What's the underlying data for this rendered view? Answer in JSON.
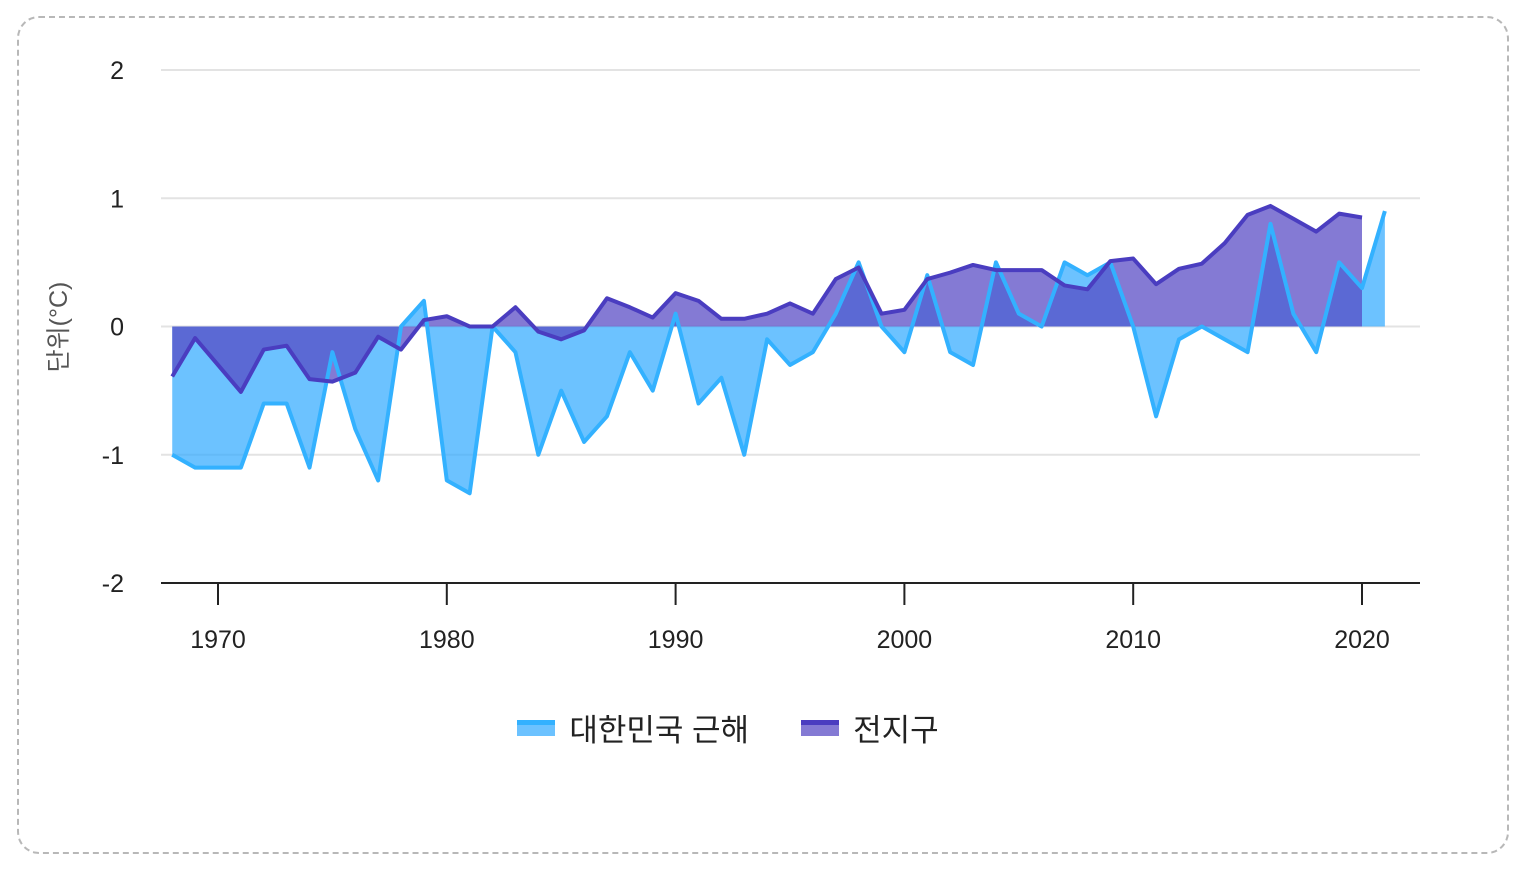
{
  "chart_data": {
    "type": "area",
    "title": "",
    "xlabel": "",
    "ylabel": "단위(°C)",
    "ylim": [
      -2,
      2
    ],
    "yticks": [
      "2",
      "1",
      "0",
      "-1",
      "-2"
    ],
    "ytick_values": [
      2,
      1,
      0,
      -1,
      -2
    ],
    "xticks": [
      "1970",
      "1980",
      "1990",
      "2000",
      "2010",
      "2020"
    ],
    "xtick_values": [
      1970,
      1980,
      1990,
      2000,
      2010,
      2020
    ],
    "xlim": [
      1966,
      2024.5
    ],
    "grid": true,
    "legend_position": "bottom",
    "series": [
      {
        "name": "대한민국 근해",
        "line_color": "#33b1ff",
        "fill_color": "rgba(51,170,255,0.72)",
        "start_year": 1968,
        "values": [
          -1.0,
          -1.1,
          -1.1,
          -1.1,
          -0.6,
          -0.6,
          -1.1,
          -0.2,
          -0.8,
          -1.2,
          0.0,
          0.2,
          -1.2,
          -1.3,
          0.0,
          -0.2,
          -1.0,
          -0.5,
          -0.9,
          -0.7,
          -0.2,
          -0.5,
          0.1,
          -0.6,
          -0.4,
          -1.0,
          -0.1,
          -0.3,
          -0.2,
          0.1,
          0.5,
          0.0,
          -0.2,
          0.4,
          -0.2,
          -0.3,
          0.5,
          0.1,
          0.0,
          0.5,
          0.4,
          0.5,
          0.0,
          -0.7,
          -0.1,
          0.0,
          -0.1,
          -0.2,
          0.8,
          0.1,
          -0.2,
          0.5,
          0.3,
          0.9
        ]
      },
      {
        "name": "전지구",
        "line_color": "#4a3dc0",
        "fill_color": "rgba(85,70,195,0.72)",
        "start_year": 1968,
        "values": [
          -0.39,
          -0.09,
          -0.3,
          -0.51,
          -0.18,
          -0.15,
          -0.41,
          -0.43,
          -0.36,
          -0.08,
          -0.18,
          0.05,
          0.08,
          0.0,
          0.0,
          0.15,
          -0.04,
          -0.1,
          -0.03,
          0.22,
          0.15,
          0.07,
          0.26,
          0.2,
          0.06,
          0.06,
          0.1,
          0.18,
          0.1,
          0.37,
          0.46,
          0.1,
          0.13,
          0.37,
          0.42,
          0.48,
          0.44,
          0.44,
          0.44,
          0.32,
          0.29,
          0.51,
          0.53,
          0.33,
          0.45,
          0.49,
          0.65,
          0.87,
          0.94,
          0.84,
          0.74,
          0.88,
          0.85
        ]
      }
    ]
  }
}
